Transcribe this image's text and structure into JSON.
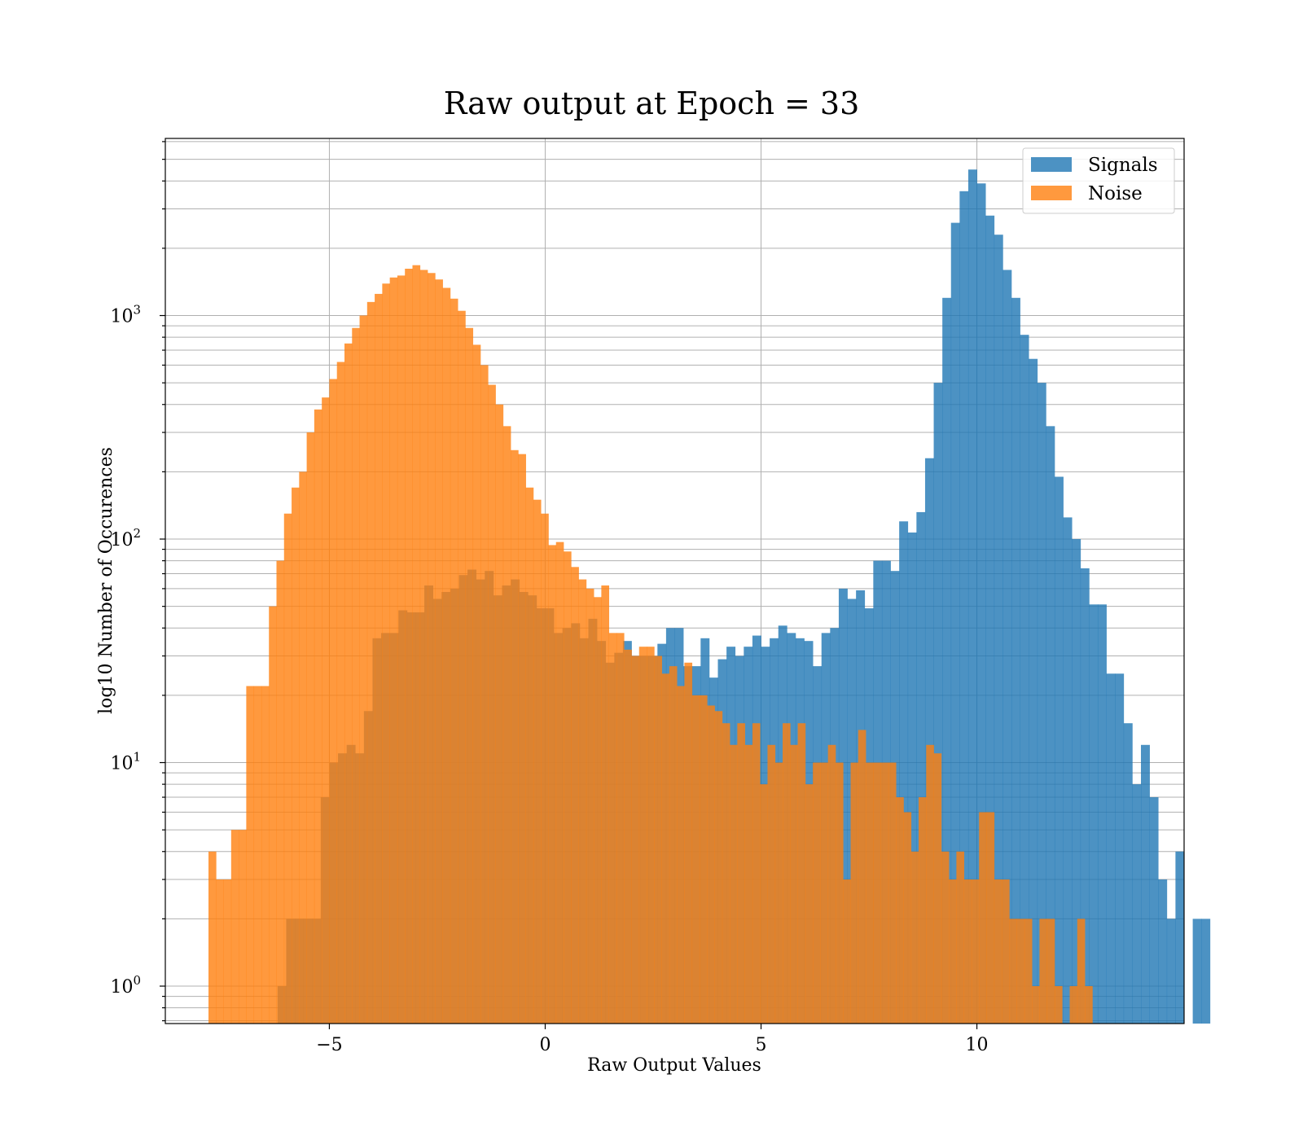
{
  "chart_data": {
    "type": "bar",
    "title": "Raw output at Epoch = 33",
    "xlabel": "Raw Output Values",
    "ylabel": "log10 Number of Occurences",
    "yscale": "log",
    "xlim": [
      -8.8,
      14.8
    ],
    "ylim": [
      0.68,
      6200
    ],
    "grid": true,
    "legend_position": "top-right",
    "x_ticks": [
      {
        "value": -5,
        "label": "−5"
      },
      {
        "value": 0,
        "label": "0"
      },
      {
        "value": 5,
        "label": "5"
      },
      {
        "value": 10,
        "label": "10"
      }
    ],
    "y_ticks": [
      {
        "value": 1,
        "base": "10",
        "exp": "0"
      },
      {
        "value": 10,
        "base": "10",
        "exp": "1"
      },
      {
        "value": 100,
        "base": "10",
        "exp": "2"
      },
      {
        "value": 1000,
        "base": "10",
        "exp": "3"
      }
    ],
    "series": [
      {
        "name": "Signals",
        "color": "#1f77b4",
        "opacity": 0.8,
        "bin_start": -6.2,
        "bin_width": 0.2,
        "counts": [
          1,
          2,
          2,
          2,
          2,
          7,
          10,
          11,
          12,
          11,
          17,
          36,
          38,
          38,
          48,
          47,
          47,
          62,
          54,
          58,
          60,
          69,
          73,
          66,
          72,
          56,
          62,
          66,
          58,
          56,
          49,
          49,
          38,
          40,
          42,
          36,
          44,
          35,
          28,
          31,
          35,
          30,
          30,
          30,
          34,
          40,
          40,
          27,
          27,
          36,
          24,
          29,
          33,
          30,
          33,
          37,
          33,
          36,
          41,
          38,
          36,
          35,
          27,
          38,
          40,
          60,
          54,
          59,
          49,
          80,
          80,
          72,
          120,
          107,
          132,
          230,
          500,
          1200,
          2600,
          3600,
          4500,
          3900,
          2800,
          2300,
          1600,
          1200,
          820,
          640,
          500,
          320,
          190,
          125,
          100,
          74,
          51,
          51,
          25,
          25,
          15,
          8,
          12,
          7,
          3,
          2,
          4,
          0,
          2,
          2
        ],
        "values_note": ""
      },
      {
        "name": "Noise",
        "color": "#ff7f0e",
        "opacity": 0.8,
        "bin_start": -7.8,
        "bin_width": 0.175,
        "counts": [
          4,
          3,
          3,
          5,
          5,
          22,
          22,
          22,
          50,
          80,
          130,
          170,
          200,
          300,
          380,
          430,
          520,
          620,
          750,
          880,
          1000,
          1150,
          1250,
          1390,
          1480,
          1510,
          1620,
          1680,
          1600,
          1550,
          1450,
          1330,
          1190,
          1050,
          880,
          740,
          600,
          490,
          400,
          320,
          250,
          240,
          170,
          150,
          130,
          94,
          97,
          88,
          75,
          66,
          60,
          55,
          62,
          38,
          38,
          32,
          30,
          33,
          33,
          30,
          25,
          27,
          22,
          28,
          20,
          20,
          18,
          17,
          15,
          12,
          15,
          12,
          15,
          8,
          12,
          10,
          15,
          12,
          15,
          8,
          10,
          10,
          12,
          10,
          3,
          10,
          14,
          10,
          10,
          10,
          10,
          7,
          6,
          4,
          7,
          12,
          11,
          4,
          3,
          4,
          3,
          3,
          6,
          6,
          3,
          3,
          2,
          2,
          2,
          1,
          2,
          2,
          1,
          0,
          1,
          2,
          1
        ],
        "values_note": ""
      }
    ]
  }
}
